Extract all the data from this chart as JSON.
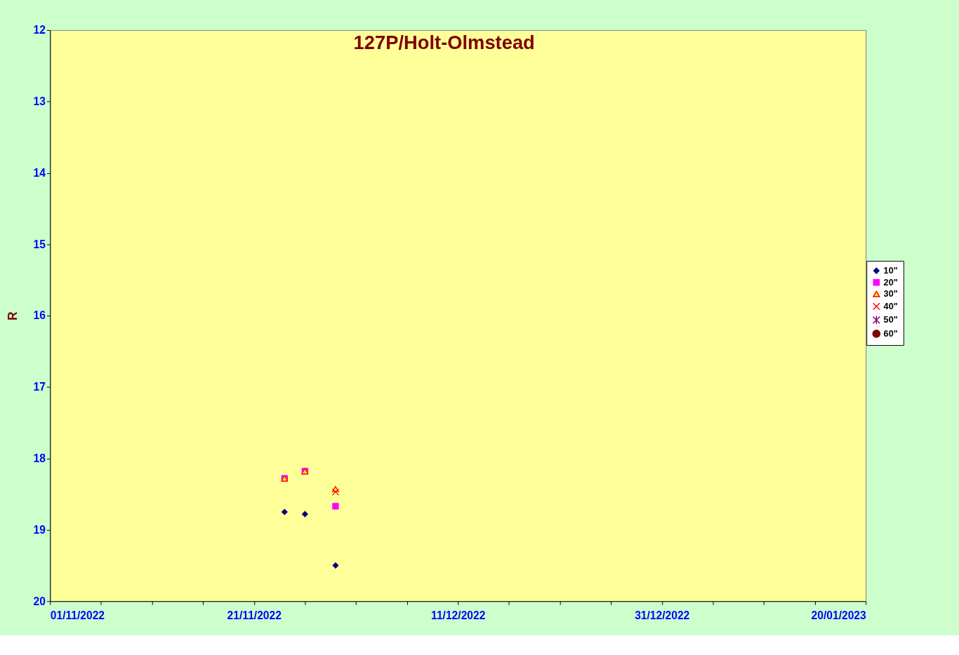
{
  "chart_data": {
    "type": "scatter",
    "title": "127P/Holt-Olmstead",
    "ylabel": "R",
    "x": [
      "2022-11-24",
      "2022-11-26",
      "2022-11-29"
    ],
    "series": [
      {
        "name": "10\"",
        "color": "#000080",
        "marker": "diamond",
        "values": [
          18.75,
          18.78,
          19.5
        ]
      },
      {
        "name": "20\"",
        "color": "#ff00ff",
        "marker": "square",
        "values": [
          18.28,
          18.18,
          18.67
        ]
      },
      {
        "name": "30\"",
        "color": "#ffff00",
        "marker": "triangle",
        "values": [
          18.28,
          18.18,
          18.43
        ]
      },
      {
        "name": "40\"",
        "color": "#ff0000",
        "marker": "cross",
        "values": [
          null,
          null,
          18.47
        ]
      },
      {
        "name": "50\"",
        "color": "#800080",
        "marker": "star",
        "values": [
          null,
          null,
          null
        ]
      },
      {
        "name": "60\"",
        "color": "#800000",
        "marker": "circle",
        "values": [
          null,
          null,
          null
        ]
      }
    ],
    "xlim": [
      "2022-11-01",
      "2023-01-20"
    ],
    "xticks": [
      {
        "value": "2022-11-01",
        "label": "01/11/2022"
      },
      {
        "value": "2022-11-06",
        "label": null
      },
      {
        "value": "2022-11-11",
        "label": null
      },
      {
        "value": "2022-11-16",
        "label": null
      },
      {
        "value": "2022-11-21",
        "label": "21/11/2022"
      },
      {
        "value": "2022-11-26",
        "label": null
      },
      {
        "value": "2022-12-01",
        "label": null
      },
      {
        "value": "2022-12-06",
        "label": null
      },
      {
        "value": "2022-12-11",
        "label": "11/12/2022"
      },
      {
        "value": "2022-12-16",
        "label": null
      },
      {
        "value": "2022-12-21",
        "label": null
      },
      {
        "value": "2022-12-26",
        "label": null
      },
      {
        "value": "2022-12-31",
        "label": "31/12/2022"
      },
      {
        "value": "2023-01-05",
        "label": null
      },
      {
        "value": "2023-01-10",
        "label": null
      },
      {
        "value": "2023-01-15",
        "label": null
      },
      {
        "value": "2023-01-20",
        "label": "20/01/2023"
      }
    ],
    "ylim": [
      20,
      12
    ],
    "yticks": [
      12,
      13,
      14,
      15,
      16,
      17,
      18,
      19,
      20
    ],
    "grid": false,
    "legend": "right"
  }
}
